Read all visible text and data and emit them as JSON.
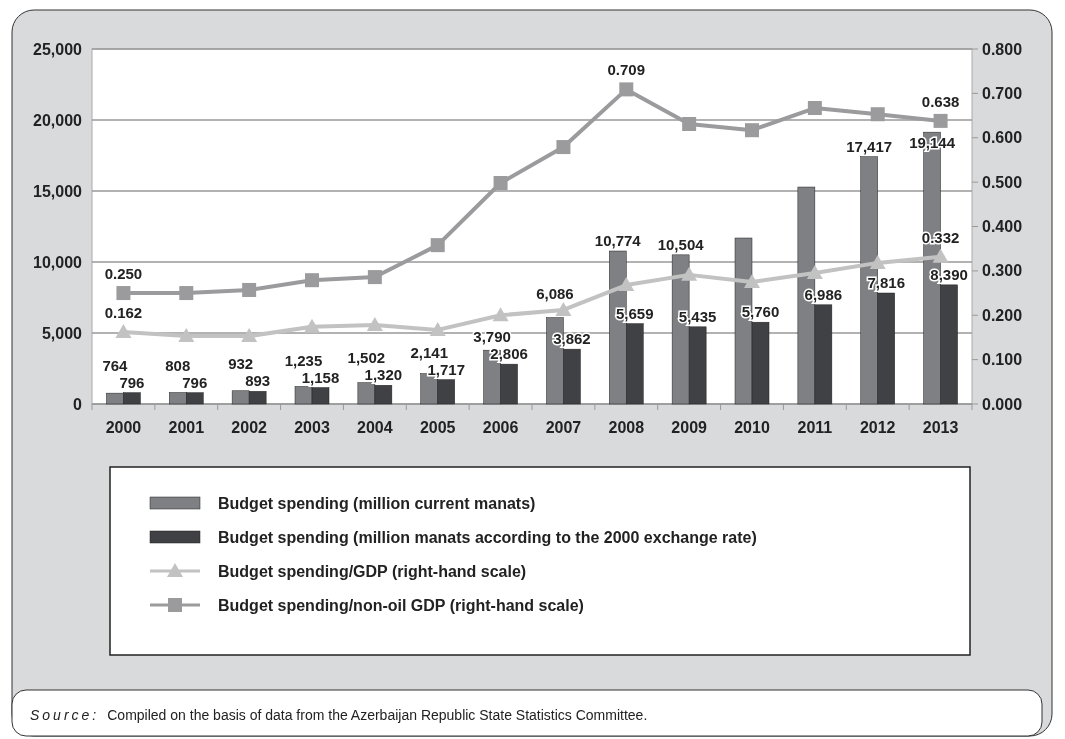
{
  "chart_data": {
    "type": "bar",
    "categories": [
      "2000",
      "2001",
      "2002",
      "2003",
      "2004",
      "2005",
      "2006",
      "2007",
      "2008",
      "2009",
      "2010",
      "2011",
      "2012",
      "2013"
    ],
    "series": [
      {
        "name": "Budget spending (million current manats)",
        "type": "bar",
        "color": "#7f8084",
        "values": [
          764,
          808,
          932,
          1235,
          1502,
          2141,
          3790,
          6086,
          10774,
          10504,
          11690,
          15280,
          17417,
          19144
        ],
        "value_labels": [
          "764",
          "808",
          "932",
          "1,235",
          "1,502",
          "2,141",
          "3,790",
          "6,086",
          "10,774",
          "10,504",
          null,
          null,
          "17,417",
          "19,144"
        ]
      },
      {
        "name": "Budget spending (million manats according to the 2000 exchange rate)",
        "color": "#404144",
        "values": [
          796,
          796,
          893,
          1158,
          1320,
          1717,
          2806,
          3862,
          5659,
          5435,
          5760,
          6986,
          7816,
          8390
        ],
        "value_labels": [
          "796",
          "796",
          "893",
          "1,158",
          "1,320",
          "1,717",
          "2,806",
          "3,862",
          "5,659",
          "5,435",
          "5,760",
          "6,986",
          "7,816",
          "8,390"
        ]
      },
      {
        "name": "Budget spending/GDP (right-hand scale)",
        "type": "line",
        "axis": "y2",
        "marker": "triangle",
        "color": "#c2c2c2",
        "values": [
          0.162,
          0.153,
          0.153,
          0.174,
          0.178,
          0.167,
          0.2,
          0.212,
          0.268,
          0.291,
          0.275,
          0.295,
          0.318,
          0.332
        ],
        "value_labels": [
          "0.162",
          null,
          null,
          null,
          null,
          null,
          null,
          null,
          null,
          null,
          null,
          null,
          null,
          "0.332"
        ]
      },
      {
        "name": "Budget spending/non-oil GDP (right-hand scale)",
        "type": "line",
        "axis": "y2",
        "marker": "square",
        "color": "#9b9b9d",
        "values": [
          0.25,
          0.25,
          0.257,
          0.279,
          0.286,
          0.358,
          0.498,
          0.579,
          0.709,
          0.631,
          0.617,
          0.667,
          0.653,
          0.638
        ],
        "value_labels": [
          "0.250",
          null,
          null,
          null,
          null,
          null,
          null,
          null,
          "0.709",
          null,
          null,
          null,
          null,
          "0.638"
        ]
      }
    ],
    "ylim": [
      0,
      25000
    ],
    "yticks": [
      {
        "value": 0,
        "label": "0"
      },
      {
        "value": 5000,
        "label": "5,000"
      },
      {
        "value": 10000,
        "label": "10,000"
      },
      {
        "value": 15000,
        "label": "15,000"
      },
      {
        "value": 20000,
        "label": "20,000"
      },
      {
        "value": 25000,
        "label": "25,000"
      }
    ],
    "y2lim": [
      0,
      0.8
    ],
    "y2ticks": [
      {
        "value": 0,
        "label": "0.000"
      },
      {
        "value": 0.1,
        "label": "0.100"
      },
      {
        "value": 0.2,
        "label": "0.200"
      },
      {
        "value": 0.3,
        "label": "0.300"
      },
      {
        "value": 0.4,
        "label": "0.400"
      },
      {
        "value": 0.5,
        "label": "0.500"
      },
      {
        "value": 0.6,
        "label": "0.600"
      },
      {
        "value": 0.7,
        "label": "0.700"
      },
      {
        "value": 0.8,
        "label": "0.800"
      }
    ],
    "grid": "y",
    "legend": "bottom",
    "annotations": [
      "Source: Compiled on the basis of data from the Azerbaijan Republic State Statistics Committee."
    ]
  }
}
